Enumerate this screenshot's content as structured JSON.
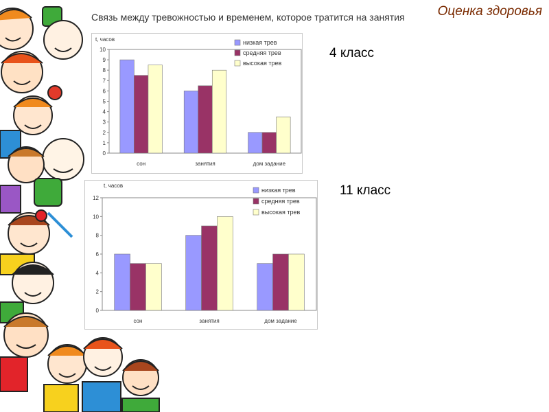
{
  "header": {
    "title": "Оценка здоровья",
    "subtitle": "Связь между тревожностью и временем, которое тратится на занятия"
  },
  "grades": {
    "grade4": "4 класс",
    "grade11": "11 класс"
  },
  "colors": {
    "low": "#9999ff",
    "mid": "#993366",
    "high": "#ffffcc"
  },
  "chart_data": [
    {
      "type": "bar",
      "ylabel": "t, часов",
      "xlabel": "",
      "categories": [
        "сон",
        "занятия",
        "дом задание"
      ],
      "ylim": [
        0,
        10
      ],
      "yticks": [
        0,
        1,
        2,
        3,
        4,
        5,
        6,
        7,
        8,
        9,
        10
      ],
      "grid": false,
      "legend_position": "top-right",
      "series": [
        {
          "name": "низкая трев",
          "values": [
            9,
            6,
            2
          ]
        },
        {
          "name": "средняя трев",
          "values": [
            7.5,
            6.5,
            2
          ]
        },
        {
          "name": "высокая трев",
          "values": [
            8.5,
            8,
            3.5
          ]
        }
      ]
    },
    {
      "type": "bar",
      "ylabel": "t, часов",
      "xlabel": "",
      "categories": [
        "сон",
        "занятия",
        "дом задание"
      ],
      "ylim": [
        0,
        12
      ],
      "yticks": [
        0,
        2,
        4,
        6,
        8,
        10,
        12
      ],
      "grid": false,
      "legend_position": "top-right",
      "series": [
        {
          "name": "низкая трев",
          "values": [
            6,
            8,
            5
          ]
        },
        {
          "name": "средняя трев",
          "values": [
            5,
            9,
            6
          ]
        },
        {
          "name": "высокая трев",
          "values": [
            5,
            10,
            6
          ]
        }
      ]
    }
  ]
}
